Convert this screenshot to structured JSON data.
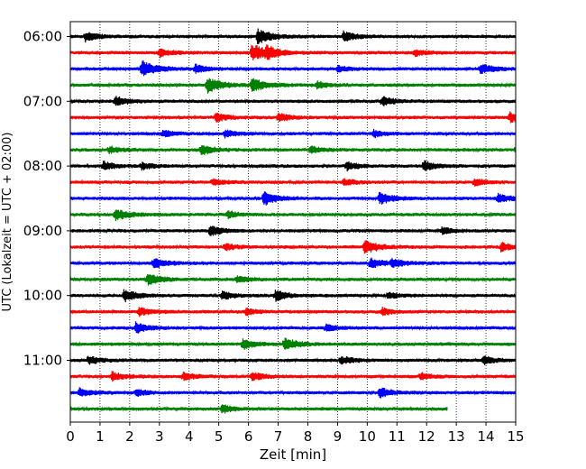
{
  "chart_data": {
    "type": "line",
    "title": "",
    "xlabel": "Zeit  [min]",
    "ylabel": "UTC (Lokalzeit = UTC + 02:00)",
    "xlim": [
      0,
      15
    ],
    "x_ticks": [
      "0",
      "1",
      "2",
      "3",
      "4",
      "5",
      "6",
      "7",
      "8",
      "9",
      "10",
      "11",
      "12",
      "13",
      "14",
      "15"
    ],
    "y_tick_labels": [
      "06:00",
      "07:00",
      "08:00",
      "09:00",
      "10:00",
      "11:00"
    ],
    "y_tick_rows": [
      0,
      4,
      8,
      12,
      16,
      20
    ],
    "grid": "vertical dotted",
    "trace_interval_minutes": 15,
    "start_time": "06:00",
    "rows": [
      {
        "time": "06:00",
        "color": "#000000",
        "end_min": 15,
        "events": [
          {
            "t": 0.5,
            "amp": 0.55
          },
          {
            "t": 6.3,
            "amp": 0.9
          },
          {
            "t": 9.2,
            "amp": 0.6
          }
        ]
      },
      {
        "time": "06:15",
        "color": "#ff0000",
        "end_min": 15,
        "events": [
          {
            "t": 3.0,
            "amp": 0.5
          },
          {
            "t": 6.1,
            "amp": 1.0
          },
          {
            "t": 6.6,
            "amp": 0.5
          },
          {
            "t": 11.6,
            "amp": 0.4
          }
        ]
      },
      {
        "time": "06:30",
        "color": "#0000ff",
        "end_min": 15,
        "events": [
          {
            "t": 2.4,
            "amp": 0.9
          },
          {
            "t": 4.2,
            "amp": 0.5
          },
          {
            "t": 9.0,
            "amp": 0.4
          },
          {
            "t": 13.8,
            "amp": 0.6
          }
        ]
      },
      {
        "time": "06:45",
        "color": "#008000",
        "end_min": 15,
        "events": [
          {
            "t": 4.6,
            "amp": 0.9
          },
          {
            "t": 6.1,
            "amp": 0.8
          },
          {
            "t": 8.3,
            "amp": 0.4
          }
        ]
      },
      {
        "time": "07:00",
        "color": "#000000",
        "end_min": 15,
        "events": [
          {
            "t": 1.5,
            "amp": 0.6
          },
          {
            "t": 10.5,
            "amp": 0.55
          }
        ]
      },
      {
        "time": "07:15",
        "color": "#ff0000",
        "end_min": 15,
        "events": [
          {
            "t": 4.9,
            "amp": 0.5
          },
          {
            "t": 7.0,
            "amp": 0.5
          },
          {
            "t": 14.8,
            "amp": 0.6
          }
        ]
      },
      {
        "time": "07:30",
        "color": "#0000ff",
        "end_min": 15,
        "events": [
          {
            "t": 3.1,
            "amp": 0.4
          },
          {
            "t": 5.2,
            "amp": 0.4
          },
          {
            "t": 10.2,
            "amp": 0.4
          }
        ]
      },
      {
        "time": "07:45",
        "color": "#008000",
        "end_min": 15,
        "events": [
          {
            "t": 1.3,
            "amp": 0.4
          },
          {
            "t": 4.4,
            "amp": 0.6
          },
          {
            "t": 8.1,
            "amp": 0.4
          },
          {
            "t": 15.0,
            "amp": 0.5
          }
        ]
      },
      {
        "time": "08:00",
        "color": "#000000",
        "end_min": 15,
        "events": [
          {
            "t": 1.1,
            "amp": 0.5
          },
          {
            "t": 2.4,
            "amp": 0.4
          },
          {
            "t": 9.3,
            "amp": 0.5
          },
          {
            "t": 11.9,
            "amp": 0.6
          }
        ]
      },
      {
        "time": "08:15",
        "color": "#ff0000",
        "end_min": 15,
        "events": [
          {
            "t": 4.8,
            "amp": 0.4
          },
          {
            "t": 9.2,
            "amp": 0.4
          },
          {
            "t": 13.6,
            "amp": 0.4
          }
        ]
      },
      {
        "time": "08:30",
        "color": "#0000ff",
        "end_min": 15,
        "events": [
          {
            "t": 6.5,
            "amp": 0.8
          },
          {
            "t": 10.4,
            "amp": 0.7
          },
          {
            "t": 14.4,
            "amp": 0.5
          }
        ]
      },
      {
        "time": "08:45",
        "color": "#008000",
        "end_min": 15,
        "events": [
          {
            "t": 1.5,
            "amp": 0.7
          },
          {
            "t": 5.3,
            "amp": 0.4
          }
        ]
      },
      {
        "time": "09:00",
        "color": "#000000",
        "end_min": 15,
        "events": [
          {
            "t": 4.7,
            "amp": 0.6
          },
          {
            "t": 12.5,
            "amp": 0.4
          }
        ]
      },
      {
        "time": "09:15",
        "color": "#ff0000",
        "end_min": 15,
        "events": [
          {
            "t": 5.2,
            "amp": 0.4
          },
          {
            "t": 9.9,
            "amp": 0.8
          },
          {
            "t": 14.5,
            "amp": 0.5
          }
        ]
      },
      {
        "time": "09:30",
        "color": "#0000ff",
        "end_min": 15,
        "events": [
          {
            "t": 2.8,
            "amp": 0.6
          },
          {
            "t": 10.1,
            "amp": 0.6
          },
          {
            "t": 10.8,
            "amp": 0.5
          }
        ]
      },
      {
        "time": "09:45",
        "color": "#008000",
        "end_min": 15,
        "events": [
          {
            "t": 2.6,
            "amp": 0.7
          },
          {
            "t": 5.6,
            "amp": 0.4
          }
        ]
      },
      {
        "time": "10:00",
        "color": "#000000",
        "end_min": 15,
        "events": [
          {
            "t": 1.8,
            "amp": 0.7
          },
          {
            "t": 5.1,
            "amp": 0.5
          },
          {
            "t": 6.9,
            "amp": 0.6
          },
          {
            "t": 10.7,
            "amp": 0.4
          }
        ]
      },
      {
        "time": "10:15",
        "color": "#ff0000",
        "end_min": 15,
        "events": [
          {
            "t": 2.3,
            "amp": 0.5
          },
          {
            "t": 5.9,
            "amp": 0.4
          },
          {
            "t": 10.5,
            "amp": 0.4
          }
        ]
      },
      {
        "time": "10:30",
        "color": "#0000ff",
        "end_min": 15,
        "events": [
          {
            "t": 2.2,
            "amp": 0.6
          },
          {
            "t": 8.6,
            "amp": 0.4
          }
        ]
      },
      {
        "time": "10:45",
        "color": "#008000",
        "end_min": 15,
        "events": [
          {
            "t": 5.8,
            "amp": 0.6
          },
          {
            "t": 7.2,
            "amp": 0.7
          }
        ]
      },
      {
        "time": "11:00",
        "color": "#000000",
        "end_min": 15,
        "events": [
          {
            "t": 0.6,
            "amp": 0.5
          },
          {
            "t": 9.1,
            "amp": 0.5
          },
          {
            "t": 13.9,
            "amp": 0.5
          }
        ]
      },
      {
        "time": "11:15",
        "color": "#ff0000",
        "end_min": 15,
        "events": [
          {
            "t": 1.4,
            "amp": 0.5
          },
          {
            "t": 3.8,
            "amp": 0.5
          },
          {
            "t": 6.1,
            "amp": 0.5
          },
          {
            "t": 11.8,
            "amp": 0.4
          }
        ]
      },
      {
        "time": "11:30",
        "color": "#0000ff",
        "end_min": 15,
        "events": [
          {
            "t": 0.3,
            "amp": 0.5
          },
          {
            "t": 2.2,
            "amp": 0.4
          },
          {
            "t": 10.4,
            "amp": 0.6
          }
        ]
      },
      {
        "time": "11:45",
        "color": "#008000",
        "end_min": 12.7,
        "events": [
          {
            "t": 5.1,
            "amp": 0.5
          }
        ]
      }
    ]
  }
}
